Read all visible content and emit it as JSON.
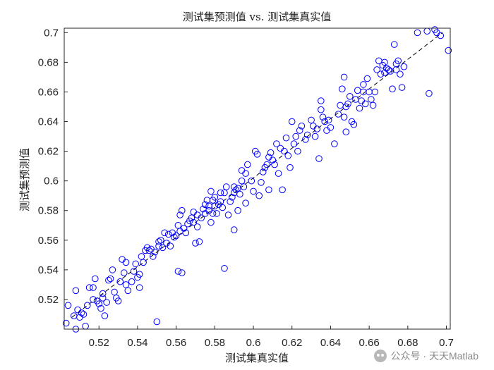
{
  "chart_data": {
    "type": "scatter",
    "title": "测试集预测值 vs. 测试集真实值",
    "xlabel": "测试集真实值",
    "ylabel": "测试集预测值",
    "xlim": [
      0.502,
      0.702
    ],
    "ylim": [
      0.5,
      0.703
    ],
    "xticks": [
      "0.52",
      "0.54",
      "0.56",
      "0.58",
      "0.6",
      "0.62",
      "0.64",
      "0.66",
      "0.68",
      "0.7"
    ],
    "yticks": [
      "0.52",
      "0.54",
      "0.56",
      "0.58",
      "0.6",
      "0.62",
      "0.64",
      "0.66",
      "0.68",
      "0.7"
    ],
    "grid": false,
    "marker": "circle",
    "marker_color": "#0000ff",
    "reference_line": {
      "style": "dashed",
      "color": "#000000",
      "from": [
        0.506,
        0.508
      ],
      "to": [
        0.698,
        0.7
      ]
    },
    "series": [
      {
        "points": [
          [
            0.503,
            0.504
          ],
          [
            0.504,
            0.516
          ],
          [
            0.507,
            0.509
          ],
          [
            0.508,
            0.526
          ],
          [
            0.509,
            0.513
          ],
          [
            0.51,
            0.508
          ],
          [
            0.511,
            0.511
          ],
          [
            0.512,
            0.51
          ],
          [
            0.513,
            0.502
          ],
          [
            0.508,
            0.5
          ],
          [
            0.514,
            0.516
          ],
          [
            0.515,
            0.528
          ],
          [
            0.517,
            0.52
          ],
          [
            0.517,
            0.528
          ],
          [
            0.518,
            0.534
          ],
          [
            0.519,
            0.519
          ],
          [
            0.52,
            0.517
          ],
          [
            0.521,
            0.514
          ],
          [
            0.522,
            0.521
          ],
          [
            0.522,
            0.524
          ],
          [
            0.523,
            0.509
          ],
          [
            0.524,
            0.518
          ],
          [
            0.525,
            0.533
          ],
          [
            0.526,
            0.534
          ],
          [
            0.527,
            0.54
          ],
          [
            0.528,
            0.525
          ],
          [
            0.529,
            0.521
          ],
          [
            0.53,
            0.519
          ],
          [
            0.531,
            0.532
          ],
          [
            0.532,
            0.547
          ],
          [
            0.533,
            0.538
          ],
          [
            0.534,
            0.53
          ],
          [
            0.534,
            0.545
          ],
          [
            0.535,
            0.526
          ],
          [
            0.537,
            0.532
          ],
          [
            0.538,
            0.539
          ],
          [
            0.539,
            0.544
          ],
          [
            0.54,
            0.535
          ],
          [
            0.541,
            0.528
          ],
          [
            0.541,
            0.537
          ],
          [
            0.542,
            0.549
          ],
          [
            0.543,
            0.545
          ],
          [
            0.544,
            0.553
          ],
          [
            0.545,
            0.555
          ],
          [
            0.546,
            0.553
          ],
          [
            0.547,
            0.554
          ],
          [
            0.548,
            0.549
          ],
          [
            0.549,
            0.552
          ],
          [
            0.55,
            0.505
          ],
          [
            0.551,
            0.556
          ],
          [
            0.551,
            0.559
          ],
          [
            0.552,
            0.56
          ],
          [
            0.553,
            0.555
          ],
          [
            0.554,
            0.565
          ],
          [
            0.555,
            0.558
          ],
          [
            0.556,
            0.564
          ],
          [
            0.557,
            0.556
          ],
          [
            0.558,
            0.565
          ],
          [
            0.559,
            0.562
          ],
          [
            0.56,
            0.563
          ],
          [
            0.561,
            0.539
          ],
          [
            0.561,
            0.57
          ],
          [
            0.562,
            0.566
          ],
          [
            0.562,
            0.577
          ],
          [
            0.563,
            0.538
          ],
          [
            0.563,
            0.58
          ],
          [
            0.564,
            0.568
          ],
          [
            0.565,
            0.565
          ],
          [
            0.566,
            0.571
          ],
          [
            0.567,
            0.573
          ],
          [
            0.568,
            0.575
          ],
          [
            0.569,
            0.572
          ],
          [
            0.569,
            0.579
          ],
          [
            0.57,
            0.558
          ],
          [
            0.571,
            0.569
          ],
          [
            0.571,
            0.577
          ],
          [
            0.572,
            0.559
          ],
          [
            0.573,
            0.575
          ],
          [
            0.574,
            0.581
          ],
          [
            0.575,
            0.578
          ],
          [
            0.575,
            0.584
          ],
          [
            0.576,
            0.587
          ],
          [
            0.577,
            0.58
          ],
          [
            0.577,
            0.583
          ],
          [
            0.578,
            0.572
          ],
          [
            0.578,
            0.593
          ],
          [
            0.579,
            0.578
          ],
          [
            0.579,
            0.587
          ],
          [
            0.58,
            0.583
          ],
          [
            0.58,
            0.589
          ],
          [
            0.581,
            0.578
          ],
          [
            0.582,
            0.584
          ],
          [
            0.583,
            0.586
          ],
          [
            0.583,
            0.592
          ],
          [
            0.584,
            0.582
          ],
          [
            0.585,
            0.541
          ],
          [
            0.585,
            0.592
          ],
          [
            0.586,
            0.596
          ],
          [
            0.587,
            0.577
          ],
          [
            0.588,
            0.586
          ],
          [
            0.589,
            0.589
          ],
          [
            0.59,
            0.567
          ],
          [
            0.59,
            0.592
          ],
          [
            0.59,
            0.596
          ],
          [
            0.591,
            0.594
          ],
          [
            0.592,
            0.58
          ],
          [
            0.592,
            0.595
          ],
          [
            0.593,
            0.591
          ],
          [
            0.594,
            0.6
          ],
          [
            0.594,
            0.607
          ],
          [
            0.595,
            0.596
          ],
          [
            0.596,
            0.585
          ],
          [
            0.596,
            0.605
          ],
          [
            0.597,
            0.611
          ],
          [
            0.599,
            0.6
          ],
          [
            0.6,
            0.593
          ],
          [
            0.601,
            0.62
          ],
          [
            0.602,
            0.618
          ],
          [
            0.603,
            0.59
          ],
          [
            0.604,
            0.599
          ],
          [
            0.605,
            0.606
          ],
          [
            0.606,
            0.609
          ],
          [
            0.607,
            0.611
          ],
          [
            0.608,
            0.594
          ],
          [
            0.608,
            0.616
          ],
          [
            0.609,
            0.619
          ],
          [
            0.61,
            0.614
          ],
          [
            0.611,
            0.611
          ],
          [
            0.612,
            0.625
          ],
          [
            0.613,
            0.605
          ],
          [
            0.614,
            0.622
          ],
          [
            0.615,
            0.594
          ],
          [
            0.616,
            0.62
          ],
          [
            0.617,
            0.629
          ],
          [
            0.618,
            0.617
          ],
          [
            0.619,
            0.609
          ],
          [
            0.62,
            0.64
          ],
          [
            0.621,
            0.625
          ],
          [
            0.622,
            0.63
          ],
          [
            0.623,
            0.62
          ],
          [
            0.624,
            0.634
          ],
          [
            0.625,
            0.637
          ],
          [
            0.627,
            0.628
          ],
          [
            0.628,
            0.631
          ],
          [
            0.63,
            0.641
          ],
          [
            0.631,
            0.637
          ],
          [
            0.632,
            0.63
          ],
          [
            0.633,
            0.635
          ],
          [
            0.634,
            0.615
          ],
          [
            0.635,
            0.648
          ],
          [
            0.635,
            0.654
          ],
          [
            0.636,
            0.643
          ],
          [
            0.637,
            0.64
          ],
          [
            0.638,
            0.634
          ],
          [
            0.639,
            0.641
          ],
          [
            0.64,
            0.636
          ],
          [
            0.642,
            0.625
          ],
          [
            0.644,
            0.645
          ],
          [
            0.645,
            0.651
          ],
          [
            0.646,
            0.662
          ],
          [
            0.647,
            0.643
          ],
          [
            0.647,
            0.67
          ],
          [
            0.648,
            0.633
          ],
          [
            0.648,
            0.65
          ],
          [
            0.649,
            0.652
          ],
          [
            0.65,
            0.657
          ],
          [
            0.651,
            0.64
          ],
          [
            0.652,
            0.638
          ],
          [
            0.653,
            0.655
          ],
          [
            0.654,
            0.661
          ],
          [
            0.655,
            0.649
          ],
          [
            0.656,
            0.654
          ],
          [
            0.657,
            0.66
          ],
          [
            0.657,
            0.665
          ],
          [
            0.658,
            0.652
          ],
          [
            0.659,
            0.669
          ],
          [
            0.66,
            0.66
          ],
          [
            0.661,
            0.655
          ],
          [
            0.662,
            0.651
          ],
          [
            0.663,
            0.66
          ],
          [
            0.664,
            0.675
          ],
          [
            0.665,
            0.681
          ],
          [
            0.666,
            0.672
          ],
          [
            0.667,
            0.678
          ],
          [
            0.668,
            0.68
          ],
          [
            0.668,
            0.673
          ],
          [
            0.669,
            0.676
          ],
          [
            0.67,
            0.675
          ],
          [
            0.671,
            0.674
          ],
          [
            0.672,
            0.662
          ],
          [
            0.673,
            0.692
          ],
          [
            0.674,
            0.679
          ],
          [
            0.674,
            0.675
          ],
          [
            0.675,
            0.681
          ],
          [
            0.676,
            0.672
          ],
          [
            0.677,
            0.663
          ],
          [
            0.678,
            0.677
          ],
          [
            0.685,
            0.7
          ],
          [
            0.69,
            0.701
          ],
          [
            0.691,
            0.659
          ],
          [
            0.694,
            0.702
          ],
          [
            0.695,
            0.7
          ],
          [
            0.697,
            0.698
          ],
          [
            0.701,
            0.688
          ]
        ]
      }
    ]
  },
  "watermark": {
    "text": "公众号 · 天天Matlab",
    "icon": "wechat-icon"
  }
}
